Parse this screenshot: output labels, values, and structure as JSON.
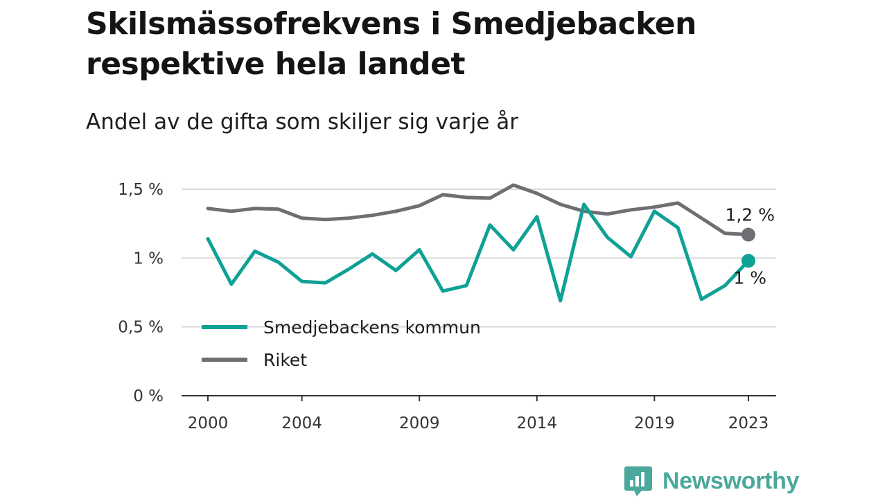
{
  "chart_data": {
    "type": "line",
    "title": "Skilsmässofrekvens i Smedjebacken respektive hela landet",
    "subtitle": "Andel av de gifta som skiljer sig varje år",
    "x": [
      2000,
      2001,
      2002,
      2003,
      2004,
      2005,
      2006,
      2007,
      2008,
      2009,
      2010,
      2011,
      2012,
      2013,
      2014,
      2015,
      2016,
      2017,
      2018,
      2019,
      2020,
      2021,
      2022,
      2023
    ],
    "x_ticks": [
      "2000",
      "2004",
      "2009",
      "2014",
      "2019",
      "2023"
    ],
    "y_ticks": [
      {
        "value": 0,
        "label": "0 %"
      },
      {
        "value": 0.5,
        "label": "0,5 %"
      },
      {
        "value": 1,
        "label": "1 %"
      },
      {
        "value": 1.5,
        "label": "1,5 %"
      }
    ],
    "ylim": [
      0,
      1.5
    ],
    "grid": true,
    "legend_position": "bottom-left",
    "series": [
      {
        "name": "Smedjebackens kommun",
        "color": "#0fa195",
        "values": [
          1.14,
          0.81,
          1.05,
          0.97,
          0.83,
          0.82,
          0.92,
          1.03,
          0.91,
          1.06,
          0.76,
          0.8,
          1.24,
          1.06,
          1.3,
          0.69,
          1.39,
          1.15,
          1.01,
          1.34,
          1.22,
          0.7,
          0.8,
          0.98
        ],
        "end_label": "1 %"
      },
      {
        "name": "Riket",
        "color": "#6e6e73",
        "values": [
          1.36,
          1.34,
          1.36,
          1.355,
          1.29,
          1.28,
          1.29,
          1.31,
          1.34,
          1.38,
          1.46,
          1.44,
          1.435,
          1.53,
          1.47,
          1.39,
          1.34,
          1.32,
          1.35,
          1.37,
          1.4,
          1.29,
          1.18,
          1.17
        ],
        "end_label": "1,2 %"
      }
    ]
  },
  "logo": {
    "text": "Newsworthy",
    "icon": "newsworthy-logo-icon",
    "color": "#4aa89c"
  }
}
